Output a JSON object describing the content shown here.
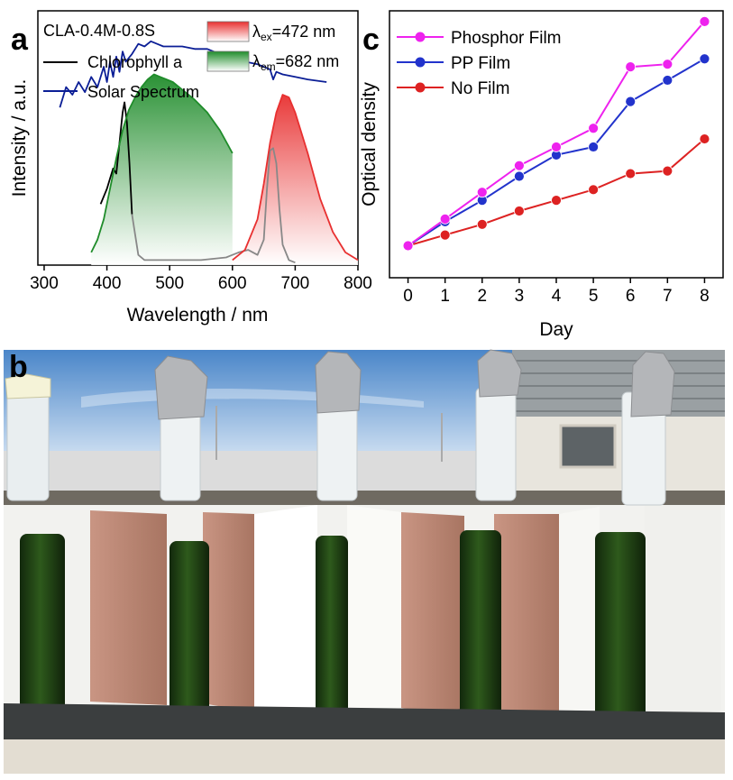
{
  "panel_labels": {
    "a": "a",
    "b": "b",
    "c": "c"
  },
  "chart_data": [
    {
      "id": "a",
      "type": "line",
      "title": "CLA-0.4M-0.8S",
      "xlabel": "Wavelength / nm",
      "ylabel": "Intensity / a.u.",
      "xlim": [
        290,
        800
      ],
      "ylim": [
        0,
        1.0
      ],
      "xticks": [
        300,
        400,
        500,
        600,
        700,
        800
      ],
      "legend_position": "top",
      "legend": [
        {
          "label": "Chlorophyll a",
          "color": "#000000",
          "kind": "line"
        },
        {
          "label": "Solar Spectrum",
          "color": "#0b1e96",
          "kind": "line"
        },
        {
          "label_main": "λ",
          "label_sub": "ex",
          "label_rest": "=472 nm",
          "color": "#e83030",
          "kind": "gradient"
        },
        {
          "label_main": "λ",
          "label_sub": "em",
          "label_rest": "=682 nm",
          "color": "#1f8c2a",
          "kind": "gradient"
        }
      ],
      "series": [
        {
          "name": "Solar Spectrum",
          "color": "#0b1e96",
          "x": [
            325,
            335,
            345,
            355,
            365,
            375,
            385,
            395,
            400,
            405,
            410,
            415,
            420,
            425,
            430,
            440,
            450,
            460,
            470,
            480,
            490,
            500,
            520,
            540,
            560,
            580,
            600,
            620,
            640,
            660,
            665,
            670,
            680,
            700,
            720,
            750
          ],
          "y": [
            0.62,
            0.7,
            0.67,
            0.72,
            0.68,
            0.74,
            0.7,
            0.78,
            0.72,
            0.8,
            0.74,
            0.82,
            0.76,
            0.84,
            0.8,
            0.83,
            0.87,
            0.86,
            0.88,
            0.87,
            0.86,
            0.86,
            0.86,
            0.85,
            0.85,
            0.83,
            0.82,
            0.8,
            0.79,
            0.77,
            0.73,
            0.76,
            0.75,
            0.74,
            0.73,
            0.72
          ]
        },
        {
          "name": "Chlorophyll a",
          "color": "#000000",
          "x": [
            390,
            400,
            405,
            410,
            415,
            420,
            425,
            428,
            432,
            436,
            440
          ],
          "y": [
            0.24,
            0.3,
            0.34,
            0.38,
            0.36,
            0.48,
            0.6,
            0.64,
            0.56,
            0.4,
            0.2
          ]
        },
        {
          "name": "Chlorophyll a tail",
          "color": "#888888",
          "x": [
            440,
            445,
            450,
            460,
            500,
            550,
            590,
            610,
            625,
            640,
            650,
            655,
            660,
            665,
            670,
            675,
            680,
            690,
            700
          ],
          "y": [
            0.2,
            0.12,
            0.04,
            0.02,
            0.02,
            0.02,
            0.03,
            0.05,
            0.06,
            0.04,
            0.1,
            0.3,
            0.45,
            0.46,
            0.4,
            0.22,
            0.08,
            0.02,
            0.01
          ]
        },
        {
          "name": "Emission",
          "color": "#1f8c2a",
          "x": [
            375,
            385,
            395,
            405,
            415,
            425,
            435,
            445,
            455,
            465,
            475,
            485,
            495,
            505,
            520,
            540,
            560,
            580,
            600
          ],
          "y": [
            0.05,
            0.1,
            0.18,
            0.3,
            0.42,
            0.53,
            0.61,
            0.66,
            0.7,
            0.73,
            0.75,
            0.74,
            0.73,
            0.72,
            0.69,
            0.65,
            0.6,
            0.53,
            0.44
          ]
        },
        {
          "name": "Excitation",
          "color": "#e83030",
          "x": [
            600,
            620,
            640,
            650,
            660,
            670,
            680,
            690,
            700,
            720,
            740,
            760,
            780,
            800
          ],
          "y": [
            0.02,
            0.06,
            0.18,
            0.32,
            0.48,
            0.6,
            0.67,
            0.66,
            0.6,
            0.44,
            0.26,
            0.13,
            0.05,
            0.02
          ]
        }
      ]
    },
    {
      "id": "c",
      "type": "line",
      "xlabel": "Day",
      "ylabel": "Optical density",
      "xlim": [
        -0.5,
        8.5
      ],
      "ylim": [
        0,
        1.0
      ],
      "x": [
        0,
        1,
        2,
        3,
        4,
        5,
        6,
        7,
        8
      ],
      "legend_position": "top-left",
      "series": [
        {
          "name": "Phosphor Film",
          "color": "#ee22ee",
          "values": [
            0.12,
            0.22,
            0.32,
            0.42,
            0.49,
            0.56,
            0.79,
            0.8,
            0.96
          ]
        },
        {
          "name": "PP Film",
          "color": "#2233cc",
          "values": [
            0.12,
            0.21,
            0.29,
            0.38,
            0.46,
            0.49,
            0.66,
            0.74,
            0.82
          ]
        },
        {
          "name": "No Film",
          "color": "#dd2222",
          "values": [
            0.12,
            0.16,
            0.2,
            0.25,
            0.29,
            0.33,
            0.39,
            0.4,
            0.52
          ]
        }
      ]
    }
  ],
  "photo": {
    "sky_top": "#4a86c9",
    "sky_bottom": "#cfe0f2",
    "culture_color": "#1c3a12",
    "pink_panel_color": "#b8836f",
    "white_panel_color": "#f2f2ef"
  }
}
